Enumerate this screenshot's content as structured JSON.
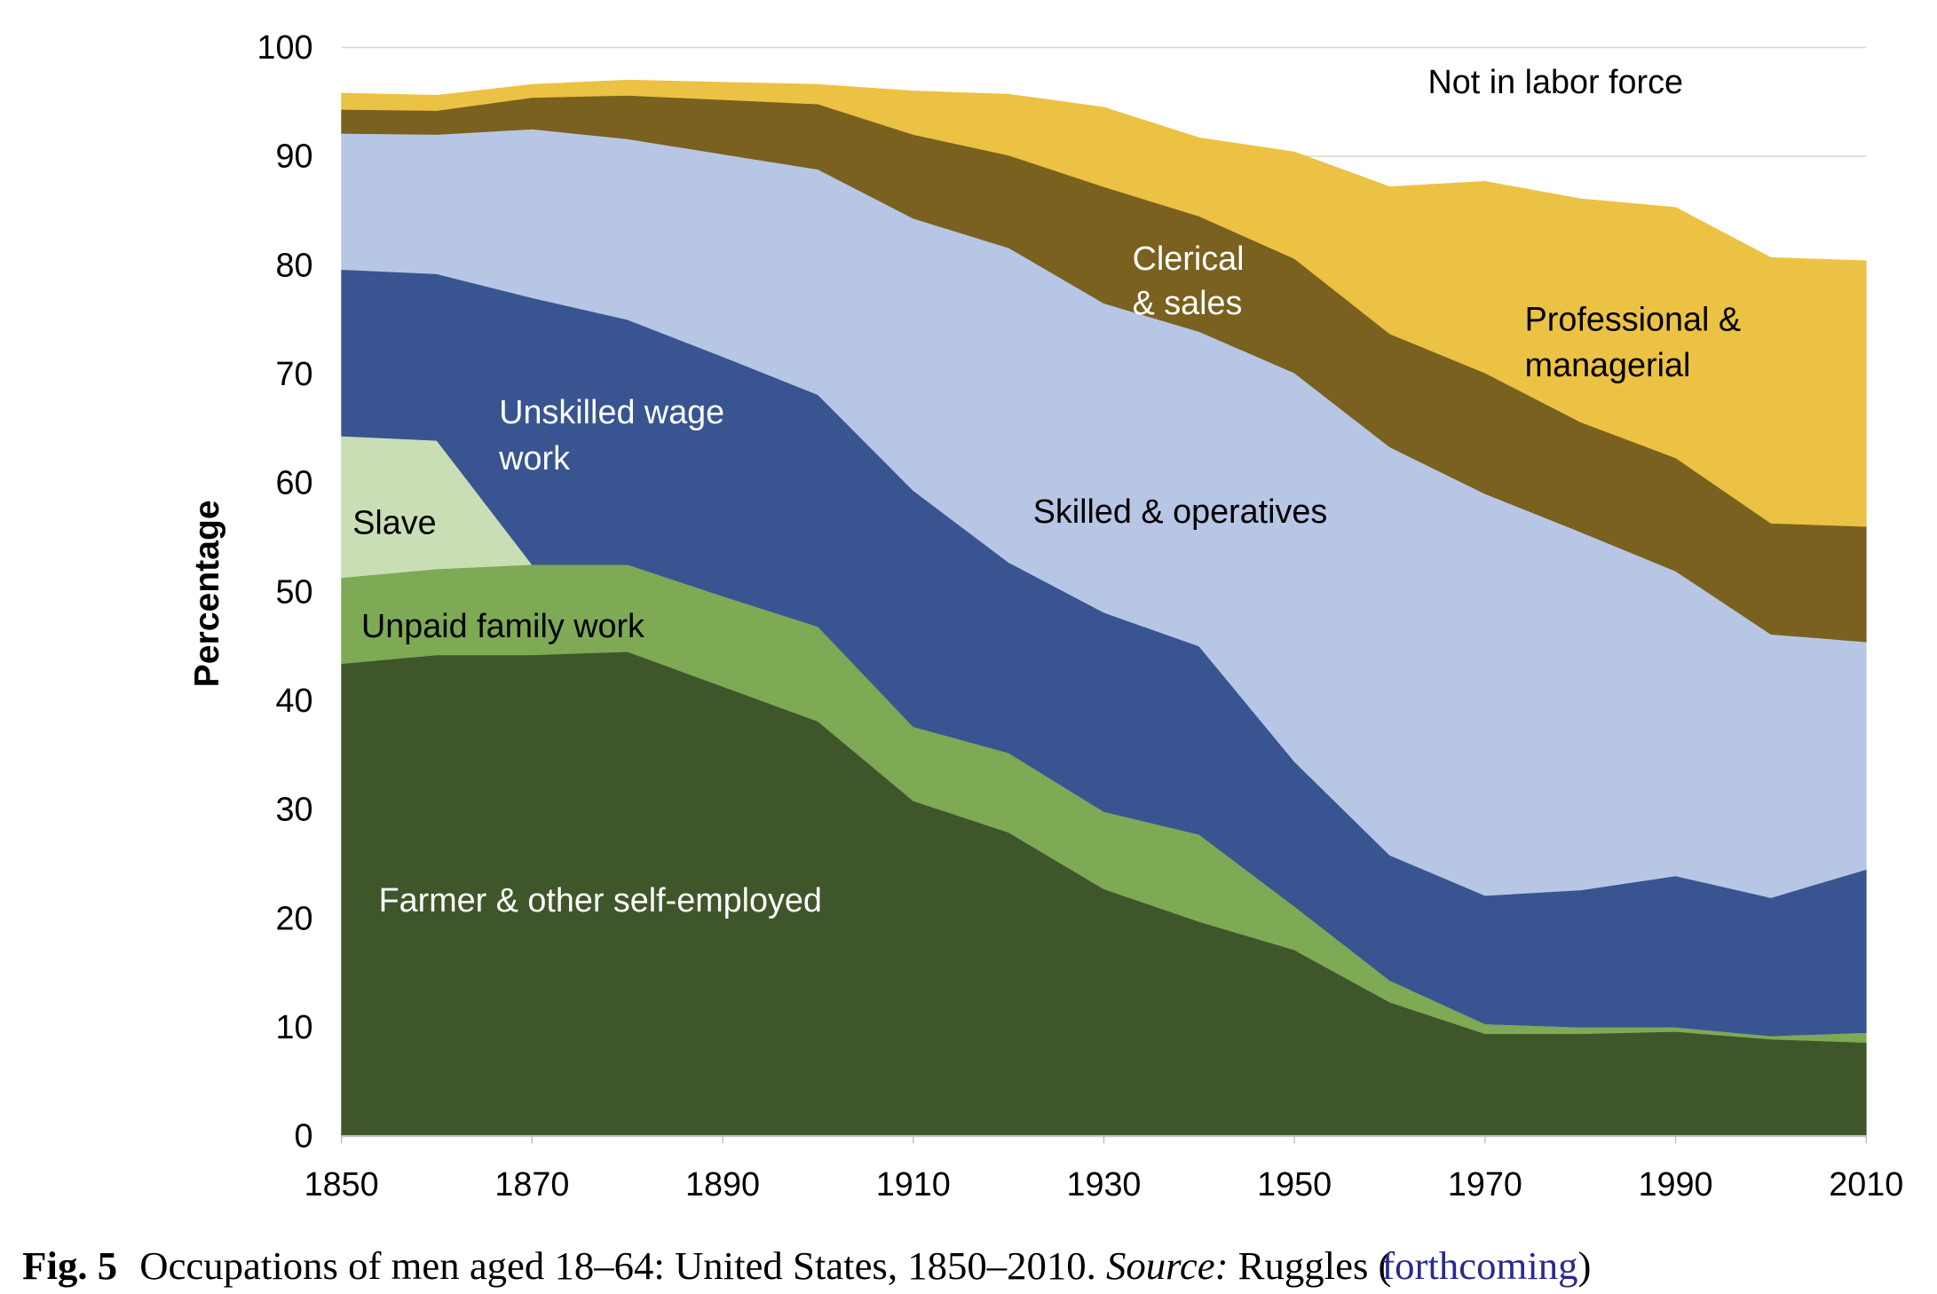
{
  "chart_data": {
    "type": "area",
    "stacked": true,
    "x": [
      1850,
      1860,
      1870,
      1880,
      1890,
      1900,
      1910,
      1920,
      1930,
      1940,
      1950,
      1960,
      1970,
      1980,
      1990,
      2000,
      2010
    ],
    "series": [
      {
        "name": "Farmer & other self-employed",
        "color": "#3f562b",
        "label_color": "#ffffff",
        "values": [
          43.4,
          44.2,
          44.2,
          44.5,
          41.3,
          38.1,
          30.8,
          27.9,
          22.7,
          19.7,
          17.1,
          12.3,
          9.4,
          9.4,
          9.6,
          8.9,
          8.6
        ]
      },
      {
        "name": "Unpaid family work",
        "color": "#7ea955",
        "label_color": "#000000",
        "values": [
          7.9,
          7.9,
          8.3,
          8.0,
          8.3,
          8.7,
          6.8,
          7.3,
          7.1,
          8.0,
          4.0,
          2.0,
          0.9,
          0.6,
          0.4,
          0.3,
          0.9
        ]
      },
      {
        "name": "Slave",
        "color": "#c9deb5",
        "label_color": "#000000",
        "values": [
          13.0,
          11.8,
          0,
          0,
          0,
          0,
          0,
          0,
          0,
          0,
          0,
          0,
          0,
          0,
          0,
          0,
          0
        ]
      },
      {
        "name": "Unskilled wage work",
        "color": "#385591",
        "label_color": "#ffffff",
        "values": [
          15.3,
          15.3,
          24.5,
          22.5,
          22.0,
          21.3,
          21.7,
          17.5,
          18.3,
          17.3,
          13.3,
          11.5,
          11.8,
          12.6,
          13.9,
          12.7,
          15.0
        ]
      },
      {
        "name": "Skilled & operatives",
        "color": "#b7c6e5",
        "label_color": "#000000",
        "values": [
          12.5,
          12.8,
          15.5,
          16.6,
          18.6,
          20.7,
          25.0,
          28.9,
          28.4,
          28.9,
          35.7,
          37.5,
          36.9,
          32.9,
          28.0,
          24.2,
          20.9
        ]
      },
      {
        "name": "Clerical & sales",
        "color": "#7a611f",
        "label_color": "#ffffff",
        "values": [
          2.2,
          2.2,
          2.9,
          4.0,
          5.0,
          6.0,
          7.7,
          8.5,
          10.7,
          10.6,
          10.5,
          10.4,
          11.1,
          10.1,
          10.4,
          10.2,
          10.6
        ]
      },
      {
        "name": "Professional & managerial",
        "color": "#ebc243",
        "label_color": "#000000",
        "values": [
          1.5,
          1.4,
          1.2,
          1.4,
          1.6,
          1.8,
          4.0,
          5.6,
          7.3,
          7.2,
          9.8,
          13.5,
          17.6,
          20.5,
          23.0,
          24.4,
          24.4
        ]
      }
    ],
    "remainder_label": "Not in labor force",
    "labels": {
      "farmer": "Farmer & other self-employed",
      "unpaid": "Unpaid family work",
      "slave": "Slave",
      "unskilled_1": "Unskilled wage",
      "unskilled_2": "work",
      "skilled": "Skilled & operatives",
      "clerical_1": "Clerical",
      "clerical_2": "& sales",
      "professional_1": "Professional &",
      "professional_2": "managerial"
    },
    "xlabel": "",
    "ylabel": "Percentage",
    "xlim": [
      1850,
      2010
    ],
    "ylim": [
      0,
      100
    ],
    "x_ticks": [
      1850,
      1870,
      1890,
      1910,
      1930,
      1950,
      1970,
      1990,
      2010
    ],
    "y_ticks": [
      0,
      10,
      20,
      30,
      40,
      50,
      60,
      70,
      80,
      90,
      100
    ],
    "grid": "horizontal",
    "gridline_color": "#d9d9d9"
  },
  "caption": {
    "fig": "Fig. 5",
    "text": "Occupations of men aged 18–64: United States, 1850–2010.",
    "source_label": "Source:",
    "source": "Ruggles (",
    "link": "forthcoming",
    "close": ")",
    "link_color": "#2a2a8c"
  }
}
